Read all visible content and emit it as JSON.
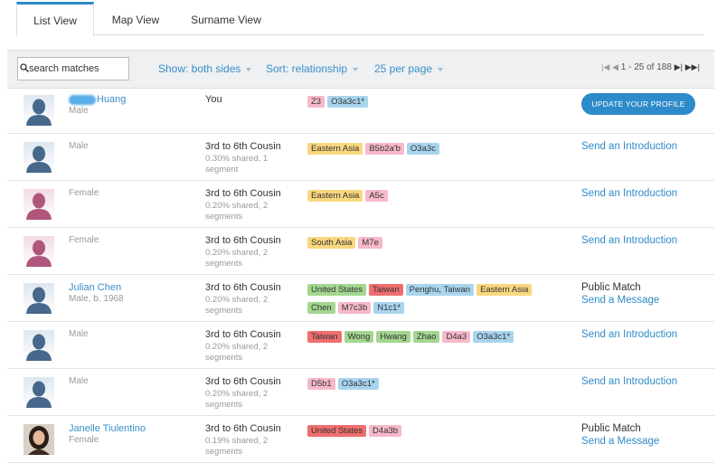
{
  "tabs": [
    "List View",
    "Map View",
    "Surname View"
  ],
  "toolbar": {
    "search_placeholder": "search matches",
    "show": "Show: both sides",
    "sort": "Sort: relationship",
    "per_page": "25 per page",
    "pagination": "1 - 25 of 188"
  },
  "rows": [
    {
      "name": "Huang",
      "subtitle": "Male",
      "relationship": "You",
      "tags": [
        {
          "label": "Z3",
          "color": "#f6b9c9"
        },
        {
          "label": "O3a3c1*",
          "color": "#a9d4ee"
        }
      ],
      "button": "UPDATE YOUR PROFILE"
    },
    {
      "subtitle": "Male",
      "relationship": "3rd to 6th Cousin",
      "shared": "0.30% shared, 1 segment",
      "tags": [
        {
          "label": "Eastern Asia",
          "color": "#f8d77e"
        },
        {
          "label": "B5b2a'b",
          "color": "#f6b9c9"
        },
        {
          "label": "O3a3c",
          "color": "#a9d4ee"
        }
      ],
      "actions": [
        "Send an Introduction"
      ]
    },
    {
      "subtitle": "Female",
      "relationship": "3rd to 6th Cousin",
      "shared": "0.20% shared, 2 segments",
      "tags": [
        {
          "label": "Eastern Asia",
          "color": "#f8d77e"
        },
        {
          "label": "A5c",
          "color": "#f6b9c9"
        }
      ],
      "actions": [
        "Send an Introduction"
      ]
    },
    {
      "subtitle": "Female",
      "relationship": "3rd to 6th Cousin",
      "shared": "0.20% shared, 2 segments",
      "tags": [
        {
          "label": "South Asia",
          "color": "#f8d77e"
        },
        {
          "label": "M7e",
          "color": "#f6b9c9"
        }
      ],
      "actions": [
        "Send an Introduction"
      ]
    },
    {
      "name": "Julian Chen",
      "subtitle": "Male, b. 1968",
      "relationship": "3rd to 6th Cousin",
      "shared": "0.20% shared, 2 segments",
      "tags": [
        {
          "label": "United States",
          "color": "#a3d68e"
        },
        {
          "label": "Taiwan",
          "color": "#f06e6e"
        },
        {
          "label": "Penghu, Taiwan",
          "color": "#a9d4ee"
        },
        {
          "label": "Eastern Asia",
          "color": "#f8d77e"
        },
        {
          "label": "Chen",
          "color": "#a3d68e"
        },
        {
          "label": "M7c3b",
          "color": "#f6b9c9"
        },
        {
          "label": "N1c1*",
          "color": "#a9d4ee"
        }
      ],
      "status": "Public Match",
      "actions": [
        "Send a Message"
      ]
    },
    {
      "subtitle": "Male",
      "relationship": "3rd to 6th Cousin",
      "shared": "0.20% shared, 2 segments",
      "tags": [
        {
          "label": "Taiwan",
          "color": "#f06e6e"
        },
        {
          "label": "Wong",
          "color": "#a3d68e"
        },
        {
          "label": "Hwang",
          "color": "#a3d68e"
        },
        {
          "label": "Zhao",
          "color": "#a3d68e"
        },
        {
          "label": "D4a3",
          "color": "#f6b9c9"
        },
        {
          "label": "O3a3c1*",
          "color": "#a9d4ee"
        }
      ],
      "actions": [
        "Send an Introduction"
      ]
    },
    {
      "subtitle": "Male",
      "relationship": "3rd to 6th Cousin",
      "shared": "0.20% shared, 2 segments",
      "tags": [
        {
          "label": "D5b1",
          "color": "#f6b9c9"
        },
        {
          "label": "O3a3c1*",
          "color": "#a9d4ee"
        }
      ],
      "actions": [
        "Send an Introduction"
      ]
    },
    {
      "name": "Janelle Tiulentino",
      "subtitle": "Female",
      "relationship": "3rd to 6th Cousin",
      "shared": "0.19% shared, 2 segments",
      "tags": [
        {
          "label": "United States",
          "color": "#f06e6e"
        },
        {
          "label": "D4a3b",
          "color": "#f6b9c9"
        }
      ],
      "status": "Public Match",
      "actions": [
        "Send a Message"
      ]
    }
  ]
}
